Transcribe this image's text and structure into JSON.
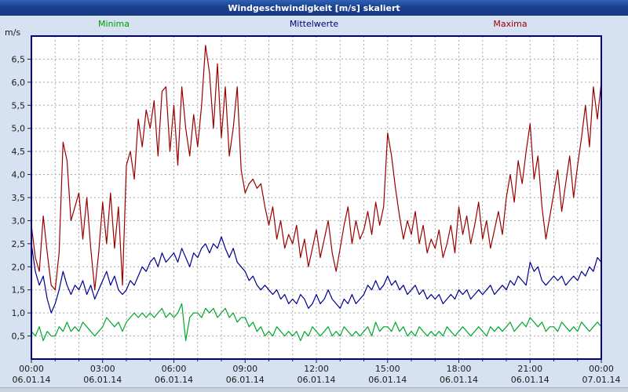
{
  "window": {
    "title": "Windgeschwindigkeit [m/s] skaliert"
  },
  "chart_data": {
    "type": "line",
    "title": "Windgeschwindigkeit [m/s] skaliert",
    "unit_label": "m/s",
    "ylim": [
      0,
      7
    ],
    "y_tick_step": 0.5,
    "y_tick_values": [
      0.5,
      1.0,
      1.5,
      2.0,
      2.5,
      3.0,
      3.5,
      4.0,
      4.5,
      5.0,
      5.5,
      6.0,
      6.5
    ],
    "decimal_comma": true,
    "x_hours": 24,
    "grid": {
      "horizontal": true,
      "vertical_hourly": true,
      "style": "dashed"
    },
    "legend_position": "top",
    "x_ticks": [
      {
        "time": "00:00",
        "date": "06.01.14"
      },
      {
        "time": "03:00",
        "date": "06.01.14"
      },
      {
        "time": "06:00",
        "date": "06.01.14"
      },
      {
        "time": "09:00",
        "date": "06.01.14"
      },
      {
        "time": "12:00",
        "date": "06.01.14"
      },
      {
        "time": "15:00",
        "date": "06.01.14"
      },
      {
        "time": "18:00",
        "date": "06.01.14"
      },
      {
        "time": "21:00",
        "date": "06.01.14"
      },
      {
        "time": "00:00",
        "date": "07.01.14"
      }
    ],
    "legend": [
      {
        "name": "Minima",
        "color": "#00a000"
      },
      {
        "name": "Mittelwerte",
        "color": "#000080"
      },
      {
        "name": "Maxima",
        "color": "#a00000"
      }
    ],
    "series": [
      {
        "name": "Minima",
        "color": "#00a82d",
        "values": [
          0.6,
          0.5,
          0.7,
          0.4,
          0.6,
          0.5,
          0.5,
          0.7,
          0.6,
          0.8,
          0.6,
          0.7,
          0.6,
          0.8,
          0.7,
          0.6,
          0.5,
          0.6,
          0.7,
          0.9,
          0.8,
          0.7,
          0.8,
          0.6,
          0.8,
          0.9,
          1.0,
          0.9,
          1.0,
          0.9,
          1.0,
          0.9,
          1.0,
          1.1,
          0.9,
          1.0,
          0.9,
          1.0,
          1.2,
          0.4,
          0.9,
          1.0,
          1.0,
          0.9,
          1.1,
          1.0,
          1.1,
          0.9,
          1.0,
          1.1,
          0.9,
          1.0,
          0.8,
          0.9,
          0.9,
          0.7,
          0.8,
          0.6,
          0.7,
          0.5,
          0.6,
          0.5,
          0.7,
          0.6,
          0.5,
          0.6,
          0.5,
          0.6,
          0.4,
          0.6,
          0.5,
          0.7,
          0.6,
          0.5,
          0.6,
          0.7,
          0.5,
          0.6,
          0.5,
          0.7,
          0.6,
          0.5,
          0.6,
          0.5,
          0.6,
          0.7,
          0.5,
          0.8,
          0.6,
          0.7,
          0.7,
          0.6,
          0.8,
          0.6,
          0.7,
          0.5,
          0.6,
          0.5,
          0.7,
          0.6,
          0.5,
          0.6,
          0.5,
          0.6,
          0.5,
          0.7,
          0.6,
          0.5,
          0.6,
          0.7,
          0.6,
          0.5,
          0.6,
          0.7,
          0.6,
          0.5,
          0.7,
          0.6,
          0.7,
          0.6,
          0.7,
          0.8,
          0.6,
          0.7,
          0.8,
          0.7,
          0.9,
          0.8,
          0.7,
          0.8,
          0.6,
          0.7,
          0.7,
          0.6,
          0.8,
          0.7,
          0.6,
          0.7,
          0.6,
          0.8,
          0.7,
          0.6,
          0.7,
          0.8,
          0.7
        ]
      },
      {
        "name": "Mittelwerte",
        "color": "#000090",
        "values": [
          2.5,
          1.9,
          1.6,
          1.8,
          1.3,
          1.0,
          1.2,
          1.5,
          1.9,
          1.6,
          1.4,
          1.6,
          1.5,
          1.7,
          1.4,
          1.6,
          1.3,
          1.5,
          1.7,
          1.9,
          1.6,
          1.8,
          1.5,
          1.4,
          1.5,
          1.7,
          1.6,
          1.8,
          2.0,
          1.9,
          2.1,
          2.2,
          2.0,
          2.3,
          2.1,
          2.2,
          2.3,
          2.1,
          2.4,
          2.2,
          2.0,
          2.3,
          2.2,
          2.4,
          2.5,
          2.3,
          2.5,
          2.4,
          2.65,
          2.4,
          2.2,
          2.4,
          2.1,
          2.0,
          1.9,
          1.7,
          1.8,
          1.6,
          1.5,
          1.6,
          1.5,
          1.4,
          1.5,
          1.3,
          1.4,
          1.2,
          1.3,
          1.2,
          1.4,
          1.3,
          1.1,
          1.2,
          1.4,
          1.2,
          1.3,
          1.5,
          1.3,
          1.2,
          1.1,
          1.3,
          1.2,
          1.4,
          1.2,
          1.3,
          1.4,
          1.6,
          1.5,
          1.7,
          1.5,
          1.6,
          1.8,
          1.6,
          1.7,
          1.5,
          1.6,
          1.4,
          1.5,
          1.6,
          1.4,
          1.5,
          1.3,
          1.4,
          1.3,
          1.4,
          1.2,
          1.3,
          1.4,
          1.3,
          1.5,
          1.4,
          1.5,
          1.3,
          1.4,
          1.5,
          1.4,
          1.5,
          1.6,
          1.4,
          1.5,
          1.6,
          1.5,
          1.7,
          1.6,
          1.8,
          1.7,
          1.6,
          2.1,
          1.9,
          2.0,
          1.7,
          1.6,
          1.7,
          1.8,
          1.7,
          1.8,
          1.6,
          1.7,
          1.8,
          1.7,
          1.9,
          1.8,
          2.0,
          1.9,
          2.2,
          2.1
        ]
      },
      {
        "name": "Maxima",
        "color": "#990000",
        "values": [
          2.9,
          2.2,
          1.9,
          3.1,
          2.3,
          1.6,
          1.5,
          2.3,
          4.7,
          4.3,
          3.0,
          3.3,
          3.6,
          2.6,
          3.5,
          2.4,
          1.5,
          2.3,
          3.4,
          2.5,
          3.6,
          2.4,
          3.3,
          1.6,
          4.2,
          4.5,
          3.9,
          5.2,
          4.6,
          5.4,
          5.0,
          5.6,
          4.4,
          5.8,
          5.9,
          4.5,
          5.5,
          4.2,
          5.9,
          5.0,
          4.4,
          5.3,
          4.6,
          5.5,
          6.8,
          6.2,
          5.0,
          6.4,
          4.8,
          5.9,
          4.4,
          5.0,
          5.9,
          4.1,
          3.6,
          3.8,
          3.9,
          3.7,
          3.8,
          3.3,
          2.9,
          3.3,
          2.6,
          3.0,
          2.4,
          2.7,
          2.5,
          2.9,
          2.2,
          2.6,
          2.0,
          2.4,
          2.8,
          2.2,
          2.6,
          3.0,
          2.3,
          1.9,
          2.4,
          2.9,
          3.3,
          2.5,
          3.0,
          2.6,
          2.8,
          3.2,
          2.7,
          3.4,
          2.9,
          3.3,
          4.9,
          4.4,
          3.7,
          3.1,
          2.6,
          3.0,
          2.7,
          3.2,
          2.5,
          2.9,
          2.3,
          2.6,
          2.4,
          2.8,
          2.2,
          2.5,
          2.9,
          2.3,
          3.3,
          2.7,
          3.1,
          2.5,
          2.9,
          3.4,
          2.6,
          3.0,
          2.4,
          2.8,
          3.2,
          2.7,
          3.5,
          4.0,
          3.4,
          4.3,
          3.8,
          4.5,
          5.1,
          3.9,
          4.4,
          3.3,
          2.6,
          3.1,
          3.6,
          4.1,
          3.2,
          3.8,
          4.4,
          3.5,
          4.2,
          4.8,
          5.5,
          4.6,
          5.9,
          5.2,
          6.0
        ]
      }
    ]
  }
}
